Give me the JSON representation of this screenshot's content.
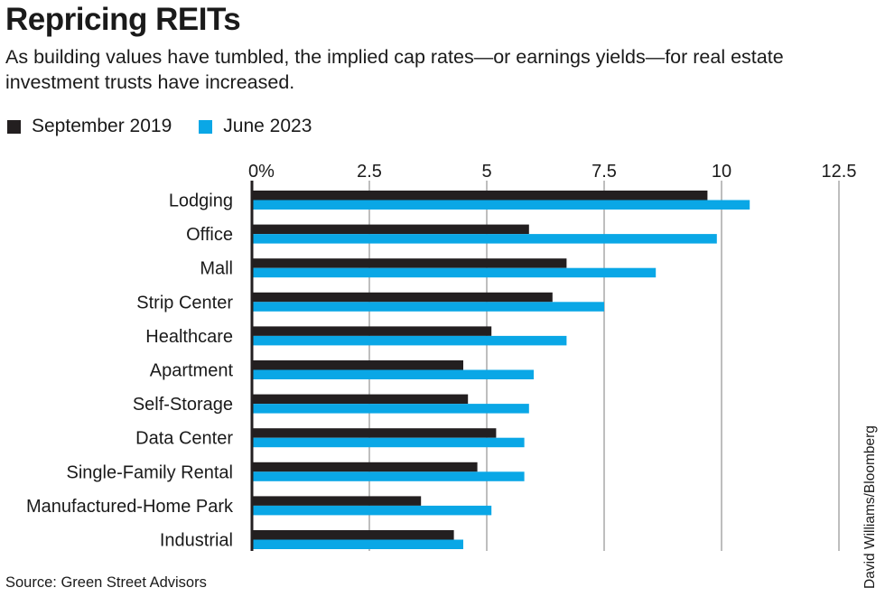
{
  "header": {
    "title": "Repricing REITs",
    "subtitle": "As building values have tumbled, the implied cap rates—or earnings yields—for real estate investment trusts have increased."
  },
  "footer": {
    "source": "Source: Green Street Advisors",
    "credit": "David Williams/Bloomberg"
  },
  "colors": {
    "series_1": "#231f20",
    "series_2": "#0aa7e6",
    "grid": "#a8a8a8"
  },
  "chart_data": {
    "type": "bar",
    "orientation": "horizontal",
    "categories": [
      "Lodging",
      "Office",
      "Mall",
      "Strip Center",
      "Healthcare",
      "Apartment",
      "Self-Storage",
      "Data Center",
      "Single-Family Rental",
      "Manufactured-Home Park",
      "Industrial"
    ],
    "series": [
      {
        "name": "September 2019",
        "values": [
          9.7,
          5.9,
          6.7,
          6.4,
          5.1,
          4.5,
          4.6,
          5.2,
          4.8,
          3.6,
          4.3
        ]
      },
      {
        "name": "June 2023",
        "values": [
          10.6,
          9.9,
          8.6,
          7.5,
          6.7,
          6.0,
          5.9,
          5.8,
          5.8,
          5.1,
          4.5
        ]
      }
    ],
    "x_ticks": [
      "0%",
      "2.5",
      "5",
      "7.5",
      "10",
      "12.5"
    ],
    "xlim": [
      0,
      12.5
    ],
    "tick_values": [
      0,
      2.5,
      5,
      7.5,
      10,
      12.5
    ],
    "grid": true,
    "legend_position": "top-left"
  }
}
